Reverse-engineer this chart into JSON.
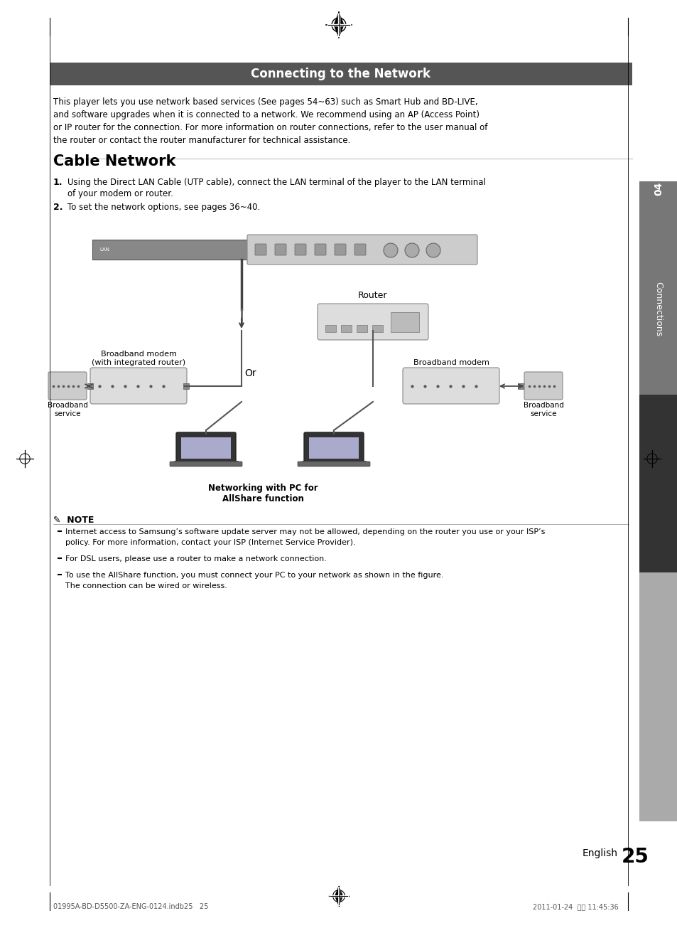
{
  "page_title": "Connecting to the Network",
  "title_bg_color": "#555555",
  "title_text_color": "#ffffff",
  "section_heading": "Cable Network",
  "intro_text": "This player lets you use network based services (See pages 54~63) such as Smart Hub and BD-LIVE,\nand software upgrades when it is connected to a network. We recommend using an AP (Access Point)\nor IP router for the connection. For more information on router connections, refer to the user manual of\nthe router or contact the router manufacturer for technical assistance.",
  "steps": [
    "Using the Direct LAN Cable (UTP cable), connect the LAN terminal of the player to the LAN terminal\nof your modem or router.",
    "To set the network options, see pages 36~40."
  ],
  "note_title": "NOTE",
  "note_items": [
    "Internet access to Samsung’s software update server may not be allowed, depending on the router you use or your ISP’s\npolicy. For more information, contact your ISP (Internet Service Provider).",
    "For DSL users, please use a router to make a network connection.",
    "To use the AllShare function, you must connect your PC to your network as shown in the figure.\nThe connection can be wired or wireless."
  ],
  "label_router": "Router",
  "label_or": "Or",
  "label_broadband_modem_integrated": "Broadband modem\n(with integrated router)",
  "label_broadband_modem": "Broadband modem",
  "label_broadband_service_left": "Broadband\nservice",
  "label_broadband_service_right": "Broadband\nservice",
  "label_networking": "Networking with PC for\nAllShare function",
  "sidebar_text": "Connections",
  "sidebar_num": "04",
  "page_num": "25",
  "footer_left": "01995A-BD-D5500-ZA-ENG-0124.indb25   25",
  "footer_right": "2011-01-24  오전 11:45:36",
  "bg_color": "#ffffff",
  "text_color": "#000000",
  "sidebar_bg": "#555555",
  "sidebar_dark": "#222222"
}
